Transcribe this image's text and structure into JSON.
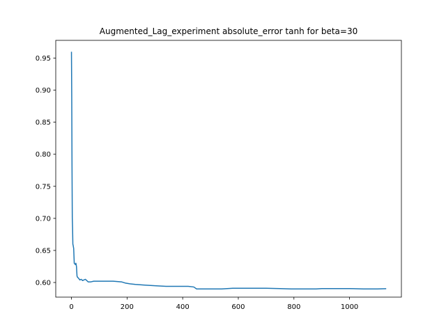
{
  "chart_data": {
    "type": "line",
    "title": "Augmented_Lag_experiment absolute_error tanh for beta=30",
    "xlabel": "",
    "ylabel": "",
    "xlim": [
      -56.5,
      1186.5
    ],
    "ylim": [
      0.5772,
      0.9776
    ],
    "xticks": [
      0,
      200,
      400,
      600,
      800,
      1000
    ],
    "xtick_labels": [
      "0",
      "200",
      "400",
      "600",
      "800",
      "1000"
    ],
    "yticks": [
      0.6,
      0.65,
      0.7,
      0.75,
      0.8,
      0.85,
      0.9,
      0.95
    ],
    "ytick_labels": [
      "0.60",
      "0.65",
      "0.70",
      "0.75",
      "0.80",
      "0.85",
      "0.90",
      "0.95"
    ],
    "grid": false,
    "series": [
      {
        "color": "#1f77b4",
        "x": [
          0,
          1,
          2,
          3,
          4,
          5,
          6,
          8,
          10,
          12,
          14,
          16,
          18,
          20,
          22,
          25,
          30,
          35,
          40,
          50,
          60,
          70,
          80,
          90,
          100,
          120,
          150,
          180,
          195,
          210,
          230,
          260,
          300,
          340,
          380,
          420,
          440,
          450,
          470,
          500,
          540,
          580,
          600,
          650,
          700,
          750,
          790,
          830,
          880,
          900,
          950,
          1000,
          1050,
          1100,
          1130
        ],
        "y": [
          0.959,
          0.89,
          0.78,
          0.7,
          0.685,
          0.66,
          0.658,
          0.653,
          0.63,
          0.629,
          0.628,
          0.63,
          0.625,
          0.61,
          0.608,
          0.607,
          0.604,
          0.605,
          0.603,
          0.605,
          0.601,
          0.601,
          0.602,
          0.602,
          0.602,
          0.602,
          0.602,
          0.601,
          0.599,
          0.598,
          0.597,
          0.596,
          0.595,
          0.594,
          0.594,
          0.594,
          0.593,
          0.59,
          0.59,
          0.59,
          0.59,
          0.591,
          0.591,
          0.591,
          0.591,
          0.5905,
          0.59,
          0.59,
          0.59,
          0.5905,
          0.5905,
          0.5905,
          0.59,
          0.59,
          0.5903
        ]
      }
    ]
  }
}
